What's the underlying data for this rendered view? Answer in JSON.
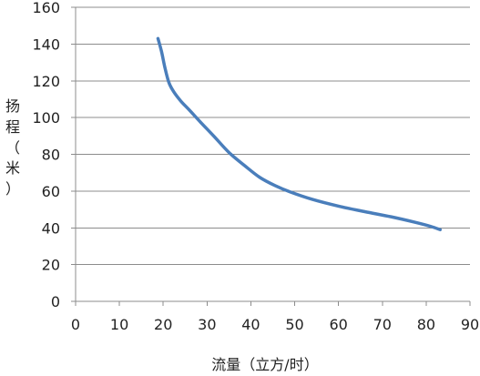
{
  "chart_data": {
    "type": "line",
    "title": "",
    "xlabel": "流量（立方/时）",
    "ylabel_chars": [
      "扬",
      "程",
      "（",
      "米",
      "）"
    ],
    "xlim": [
      0,
      90
    ],
    "ylim": [
      0,
      160
    ],
    "xticks": [
      0,
      10,
      20,
      30,
      40,
      50,
      60,
      70,
      80,
      90
    ],
    "yticks": [
      0,
      20,
      40,
      60,
      80,
      100,
      120,
      140,
      160
    ],
    "grid": "horizontal",
    "legend": "none",
    "series": [
      {
        "color": "#4A7EBB",
        "x": [
          18.8,
          19.6,
          20.4,
          21.3,
          22.4,
          24.0,
          26.0,
          28.5,
          31.5,
          35.0,
          38.5,
          42.0,
          45.5,
          49.0,
          54.0,
          60.0,
          66.0,
          72.0,
          77.5,
          81.0,
          83.2
        ],
        "y": [
          143,
          136,
          127,
          119,
          114,
          109,
          104,
          97.5,
          90,
          81,
          74,
          67.5,
          63,
          59.5,
          55.5,
          51.8,
          48.8,
          46,
          43,
          40.8,
          39
        ]
      }
    ]
  }
}
